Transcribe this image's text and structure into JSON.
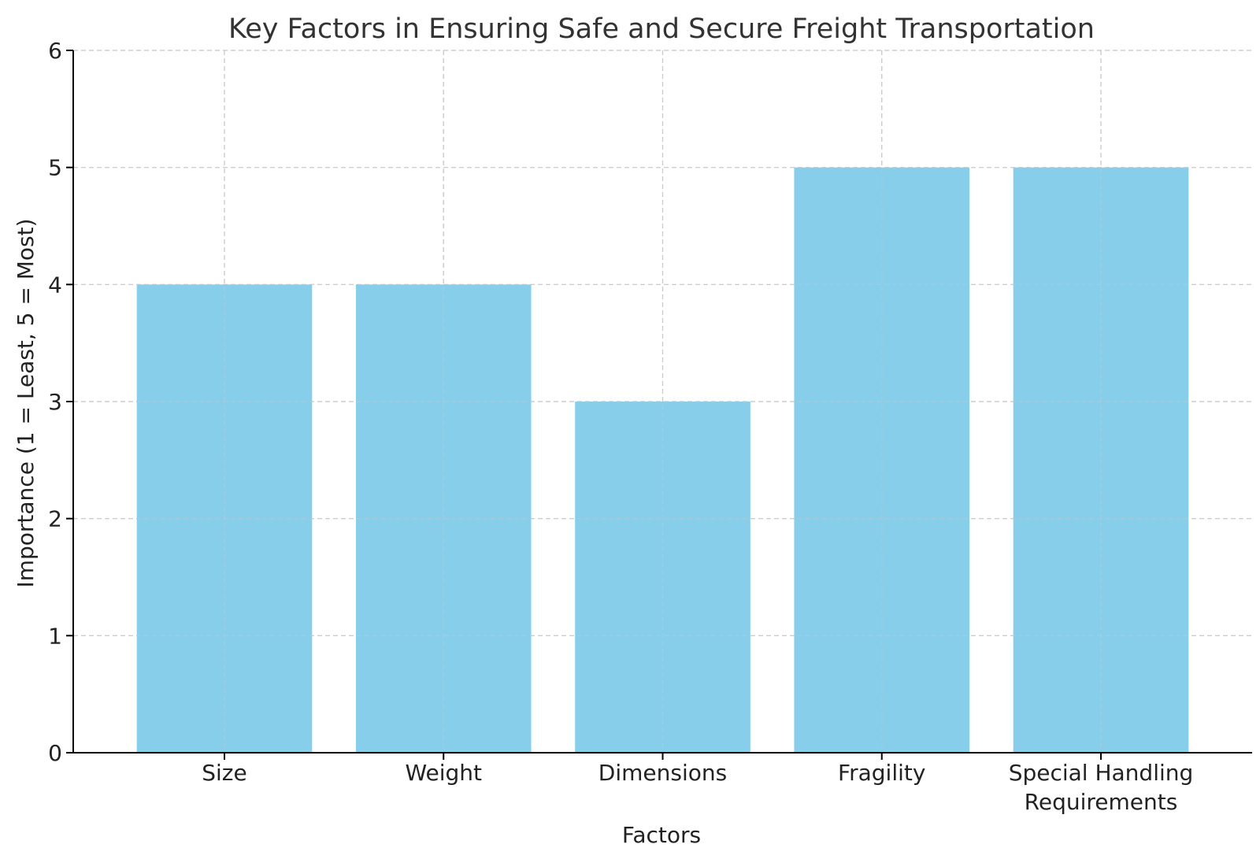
{
  "chart_data": {
    "type": "bar",
    "title": "Key Factors in Ensuring Safe and Secure Freight Transportation",
    "xlabel": "Factors",
    "ylabel": "Importance (1 = Least, 5 = Most)",
    "categories": [
      "Size",
      "Weight",
      "Dimensions",
      "Fragility",
      "Special Handling\nRequirements"
    ],
    "values": [
      4,
      4,
      3,
      5,
      5
    ],
    "ylim": [
      0,
      6
    ],
    "yticks": [
      0,
      1,
      2,
      3,
      4,
      5,
      6
    ],
    "grid": true,
    "bar_color": "#87CEEB"
  }
}
